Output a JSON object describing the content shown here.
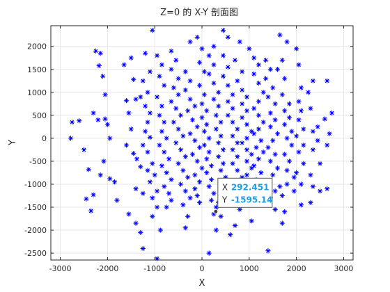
{
  "chart_data": {
    "type": "scatter",
    "title": "Z=0 的 X-Y 剖面图",
    "xlabel": "X",
    "ylabel": "Y",
    "xlim": [
      -3200,
      3200
    ],
    "ylim": [
      -2650,
      2450
    ],
    "xticks": [
      -3000,
      -2000,
      -1000,
      0,
      1000,
      2000,
      3000
    ],
    "yticks": [
      -2500,
      -2000,
      -1500,
      -1000,
      -500,
      0,
      500,
      1000,
      1500,
      2000
    ],
    "grid": true,
    "marker": "asterisk",
    "marker_color": "#0000ff",
    "points": [
      [
        -2750,
        350
      ],
      [
        -2600,
        380
      ],
      [
        -2780,
        0
      ],
      [
        -2500,
        -250
      ],
      [
        -2400,
        -680
      ],
      [
        -2450,
        -1320
      ],
      [
        -2300,
        -1230
      ],
      [
        -2350,
        -1580
      ],
      [
        -2250,
        1900
      ],
      [
        -2150,
        1850
      ],
      [
        -2180,
        1580
      ],
      [
        -2100,
        1350
      ],
      [
        -2050,
        950
      ],
      [
        -2300,
        550
      ],
      [
        -2200,
        400
      ],
      [
        -2050,
        420
      ],
      [
        -2000,
        300
      ],
      [
        -1950,
        0
      ],
      [
        -2080,
        -500
      ],
      [
        -2150,
        -800
      ],
      [
        -1950,
        -880
      ],
      [
        -1850,
        -950
      ],
      [
        -1800,
        -1350
      ],
      [
        -1650,
        1600
      ],
      [
        -1500,
        1750
      ],
      [
        -1450,
        1280
      ],
      [
        -1600,
        820
      ],
      [
        -1400,
        850
      ],
      [
        -1550,
        550
      ],
      [
        -1500,
        200
      ],
      [
        -1600,
        -150
      ],
      [
        -1450,
        -330
      ],
      [
        -1380,
        -450
      ],
      [
        -1300,
        -620
      ],
      [
        -1400,
        -1100
      ],
      [
        -1250,
        -1200
      ],
      [
        -1550,
        -1650
      ],
      [
        -1400,
        -1850
      ],
      [
        -1300,
        -2050
      ],
      [
        -1250,
        -2400
      ],
      [
        -950,
        -2620
      ],
      [
        -880,
        -2000
      ],
      [
        -1050,
        -1700
      ],
      [
        -950,
        -1500
      ],
      [
        -1200,
        1850
      ],
      [
        -1100,
        1450
      ],
      [
        -1250,
        1250
      ],
      [
        -1150,
        1000
      ],
      [
        -1300,
        900
      ],
      [
        -1200,
        700
      ],
      [
        -1100,
        550
      ],
      [
        -1150,
        350
      ],
      [
        -1200,
        150
      ],
      [
        -1100,
        20
      ],
      [
        -1250,
        -150
      ],
      [
        -1150,
        -300
      ],
      [
        -1050,
        -550
      ],
      [
        -1150,
        -700
      ],
      [
        -1000,
        -800
      ],
      [
        -1100,
        -950
      ],
      [
        -950,
        -1150
      ],
      [
        -1050,
        -1300
      ],
      [
        -1050,
        2350
      ],
      [
        -950,
        1800
      ],
      [
        -850,
        1600
      ],
      [
        -900,
        1350
      ],
      [
        -800,
        1150
      ],
      [
        -950,
        900
      ],
      [
        -850,
        700
      ],
      [
        -900,
        500
      ],
      [
        -800,
        350
      ],
      [
        -850,
        150
      ],
      [
        -750,
        0
      ],
      [
        -900,
        -150
      ],
      [
        -800,
        -300
      ],
      [
        -700,
        -450
      ],
      [
        -850,
        -600
      ],
      [
        -750,
        -750
      ],
      [
        -650,
        -900
      ],
      [
        -800,
        -1050
      ],
      [
        -700,
        -1200
      ],
      [
        -650,
        -1350
      ],
      [
        -750,
        -1500
      ],
      [
        -650,
        1900
      ],
      [
        -550,
        1700
      ],
      [
        -650,
        1500
      ],
      [
        -500,
        1300
      ],
      [
        -600,
        1100
      ],
      [
        -500,
        950
      ],
      [
        -650,
        800
      ],
      [
        -550,
        650
      ],
      [
        -450,
        500
      ],
      [
        -600,
        350
      ],
      [
        -500,
        200
      ],
      [
        -400,
        50
      ],
      [
        -550,
        -100
      ],
      [
        -450,
        -250
      ],
      [
        -350,
        -400
      ],
      [
        -500,
        -550
      ],
      [
        -400,
        -700
      ],
      [
        -300,
        -850
      ],
      [
        -450,
        -1000
      ],
      [
        -350,
        -1150
      ],
      [
        -250,
        -1300
      ],
      [
        -400,
        -1450
      ],
      [
        -300,
        -1700
      ],
      [
        -350,
        -1950
      ],
      [
        -250,
        2100
      ],
      [
        -350,
        1450
      ],
      [
        -250,
        1250
      ],
      [
        -350,
        1050
      ],
      [
        -250,
        850
      ],
      [
        -150,
        700
      ],
      [
        -300,
        600
      ],
      [
        -200,
        400
      ],
      [
        -100,
        250
      ],
      [
        -250,
        100
      ],
      [
        -150,
        -50
      ],
      [
        -50,
        -200
      ],
      [
        -200,
        -350
      ],
      [
        -100,
        -500
      ],
      [
        0,
        -650
      ],
      [
        -150,
        -800
      ],
      [
        -50,
        -950
      ],
      [
        -150,
        -1100
      ],
      [
        -100,
        -1250
      ],
      [
        -50,
        -1400
      ],
      [
        -100,
        2200
      ],
      [
        0,
        1950
      ],
      [
        -50,
        1650
      ],
      [
        50,
        1450
      ],
      [
        -50,
        1150
      ],
      [
        50,
        950
      ],
      [
        0,
        750
      ],
      [
        100,
        600
      ],
      [
        0,
        450
      ],
      [
        100,
        300
      ],
      [
        50,
        150
      ],
      [
        150,
        0
      ],
      [
        50,
        -150
      ],
      [
        150,
        -300
      ],
      [
        100,
        -450
      ],
      [
        200,
        -600
      ],
      [
        100,
        -750
      ],
      [
        200,
        -900
      ],
      [
        150,
        -1050
      ],
      [
        250,
        -1200
      ],
      [
        200,
        -1350
      ],
      [
        300,
        -1500
      ],
      [
        250,
        -1650
      ],
      [
        150,
        -2500
      ],
      [
        250,
        2000
      ],
      [
        150,
        1800
      ],
      [
        250,
        1600
      ],
      [
        150,
        1400
      ],
      [
        250,
        1200
      ],
      [
        350,
        1000
      ],
      [
        250,
        850
      ],
      [
        350,
        700
      ],
      [
        300,
        500
      ],
      [
        400,
        350
      ],
      [
        300,
        200
      ],
      [
        400,
        50
      ],
      [
        350,
        -100
      ],
      [
        450,
        -250
      ],
      [
        350,
        -400
      ],
      [
        450,
        -550
      ],
      [
        400,
        -700
      ],
      [
        500,
        -850
      ],
      [
        400,
        -1000
      ],
      [
        500,
        -1150
      ],
      [
        450,
        -1300
      ],
      [
        350,
        -1400
      ],
      [
        400,
        -1700
      ],
      [
        300,
        -2000
      ],
      [
        450,
        2350
      ],
      [
        550,
        2200
      ],
      [
        450,
        1800
      ],
      [
        550,
        1550
      ],
      [
        450,
        1350
      ],
      [
        550,
        1150
      ],
      [
        650,
        950
      ],
      [
        550,
        800
      ],
      [
        650,
        650
      ],
      [
        550,
        500
      ],
      [
        650,
        350
      ],
      [
        750,
        200
      ],
      [
        650,
        50
      ],
      [
        750,
        -100
      ],
      [
        650,
        -250
      ],
      [
        750,
        -400
      ],
      [
        650,
        -550
      ],
      [
        750,
        -700
      ],
      [
        850,
        -850
      ],
      [
        750,
        -1000
      ],
      [
        650,
        -1100
      ],
      [
        800,
        -1550
      ],
      [
        700,
        -1900
      ],
      [
        600,
        -2100
      ],
      [
        800,
        2100
      ],
      [
        700,
        1700
      ],
      [
        850,
        1450
      ],
      [
        750,
        1250
      ],
      [
        850,
        1050
      ],
      [
        950,
        900
      ],
      [
        850,
        750
      ],
      [
        950,
        600
      ],
      [
        850,
        450
      ],
      [
        950,
        300
      ],
      [
        1050,
        150
      ],
      [
        950,
        0
      ],
      [
        850,
        -100
      ],
      [
        950,
        -250
      ],
      [
        1050,
        -350
      ],
      [
        950,
        -500
      ],
      [
        1050,
        -650
      ],
      [
        950,
        -800
      ],
      [
        1100,
        -950
      ],
      [
        1000,
        -1100
      ],
      [
        900,
        -1300
      ],
      [
        1050,
        -1800
      ],
      [
        1000,
        1950
      ],
      [
        1100,
        1750
      ],
      [
        1200,
        1600
      ],
      [
        1100,
        1400
      ],
      [
        1200,
        1200
      ],
      [
        1300,
        1000
      ],
      [
        1200,
        800
      ],
      [
        1100,
        650
      ],
      [
        1200,
        500
      ],
      [
        1300,
        350
      ],
      [
        1200,
        200
      ],
      [
        1100,
        100
      ],
      [
        1250,
        -50
      ],
      [
        1150,
        -200
      ],
      [
        1300,
        -300
      ],
      [
        1200,
        -450
      ],
      [
        1100,
        -600
      ],
      [
        1250,
        -750
      ],
      [
        1150,
        -900
      ],
      [
        1300,
        -1050
      ],
      [
        1200,
        -1200
      ],
      [
        1250,
        -1450
      ],
      [
        1400,
        -2450
      ],
      [
        1350,
        1700
      ],
      [
        1450,
        1500
      ],
      [
        1350,
        1300
      ],
      [
        1500,
        1100
      ],
      [
        1400,
        900
      ],
      [
        1550,
        750
      ],
      [
        1450,
        550
      ],
      [
        1550,
        400
      ],
      [
        1450,
        250
      ],
      [
        1600,
        100
      ],
      [
        1500,
        -50
      ],
      [
        1400,
        -200
      ],
      [
        1550,
        -350
      ],
      [
        1450,
        -500
      ],
      [
        1600,
        -650
      ],
      [
        1500,
        -800
      ],
      [
        1650,
        -1050
      ],
      [
        1550,
        -1150
      ],
      [
        1450,
        -1300
      ],
      [
        1550,
        -1550
      ],
      [
        1650,
        2250
      ],
      [
        1800,
        2100
      ],
      [
        1700,
        1700
      ],
      [
        1600,
        1500
      ],
      [
        1750,
        1300
      ],
      [
        1700,
        950
      ],
      [
        1850,
        750
      ],
      [
        1750,
        600
      ],
      [
        1850,
        450
      ],
      [
        1750,
        300
      ],
      [
        1900,
        150
      ],
      [
        1800,
        0
      ],
      [
        1900,
        -150
      ],
      [
        1750,
        -350
      ],
      [
        1850,
        -500
      ],
      [
        1800,
        -700
      ],
      [
        1950,
        -850
      ],
      [
        1800,
        -1000
      ],
      [
        1700,
        -1250
      ],
      [
        1750,
        -1600
      ],
      [
        1700,
        -1850
      ],
      [
        2000,
        1950
      ],
      [
        2050,
        1600
      ],
      [
        2100,
        1100
      ],
      [
        2050,
        800
      ],
      [
        2100,
        600
      ],
      [
        2050,
        400
      ],
      [
        2150,
        200
      ],
      [
        2000,
        50
      ],
      [
        2150,
        -150
      ],
      [
        2050,
        -300
      ],
      [
        2150,
        -550
      ],
      [
        2000,
        -750
      ],
      [
        2100,
        -1000
      ],
      [
        1950,
        -1150
      ],
      [
        2100,
        -1450
      ],
      [
        2350,
        1250
      ],
      [
        2250,
        1000
      ],
      [
        2300,
        650
      ],
      [
        2450,
        250
      ],
      [
        2350,
        150
      ],
      [
        2450,
        -50
      ],
      [
        2350,
        -250
      ],
      [
        2500,
        -550
      ],
      [
        2300,
        -800
      ],
      [
        2350,
        -1050
      ],
      [
        2500,
        -1150
      ],
      [
        2300,
        -1400
      ],
      [
        2650,
        -1100
      ],
      [
        2650,
        1250
      ],
      [
        2750,
        550
      ],
      [
        2600,
        420
      ],
      [
        2700,
        100
      ],
      [
        2650,
        -150
      ]
    ],
    "datatip": {
      "x_prefix": "X",
      "y_prefix": "Y",
      "x": 292.451,
      "y": -1595.14,
      "x_text": "292.451",
      "y_text": "-1595.14"
    }
  },
  "colors": {
    "marker": "#0000ff",
    "grid": "#e6e6e6",
    "axis": "#262626",
    "tip_value": "#1a9ee6",
    "tip_border": "#555555"
  }
}
